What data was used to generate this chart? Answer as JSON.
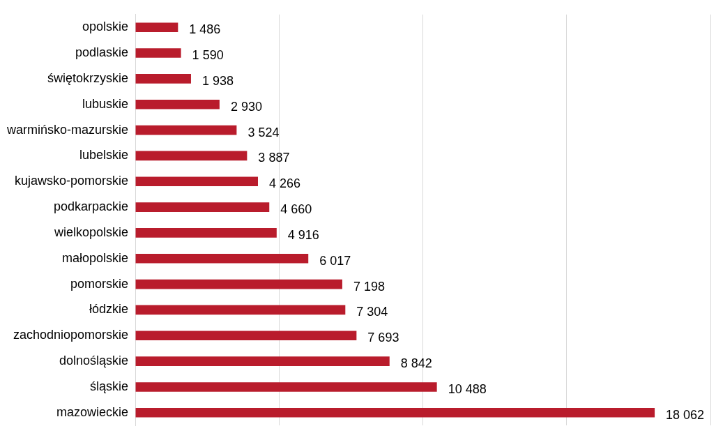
{
  "chart_data": {
    "type": "bar",
    "orientation": "horizontal",
    "categories": [
      "opolskie",
      "podlaskie",
      "świętokrzyskie",
      "lubuskie",
      "warmińsko-mazurskie",
      "lubelskie",
      "kujawsko-pomorskie",
      "podkarpackie",
      "wielkopolskie",
      "małopolskie",
      "pomorskie",
      "łódzkie",
      "zachodniopomorskie",
      "dolnośląskie",
      "śląskie",
      "mazowieckie"
    ],
    "values": [
      1486,
      1590,
      1938,
      2930,
      3524,
      3887,
      4266,
      4660,
      4916,
      6017,
      7198,
      7304,
      7693,
      8842,
      10488,
      18062
    ],
    "value_labels": [
      "1 486",
      "1 590",
      "1 938",
      "2 930",
      "3 524",
      "3 887",
      "4 266",
      "4 660",
      "4 916",
      "6 017",
      "7 198",
      "7 304",
      "7 693",
      "8 842",
      "10 488",
      "18 062"
    ],
    "color": "#b91c2c",
    "xlim": [
      0,
      20000
    ],
    "xticks": [
      {
        "value": 0,
        "label": null
      },
      {
        "value": 5000,
        "label": null
      },
      {
        "value": 10000,
        "label": null
      },
      {
        "value": 15000,
        "label": null
      },
      {
        "value": 20000,
        "label": null
      }
    ],
    "grid": "x",
    "tick_labels": "y",
    "legend": false
  }
}
